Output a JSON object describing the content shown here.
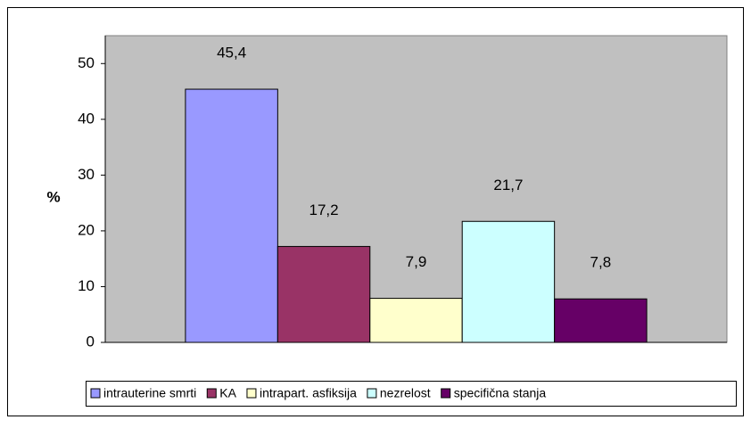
{
  "chart_data": {
    "type": "bar",
    "ylabel": "%",
    "categories": [
      null
    ],
    "series": [
      {
        "name": "intrauterine smrti",
        "color": "#9999ff",
        "values": [
          45.4
        ],
        "value_labels": [
          "45,4"
        ]
      },
      {
        "name": "KA",
        "color": "#993366",
        "values": [
          17.2
        ],
        "value_labels": [
          "17,2"
        ]
      },
      {
        "name": "intrapart. asfiksija",
        "color": "#ffffcc",
        "values": [
          7.9
        ],
        "value_labels": [
          "7,9"
        ]
      },
      {
        "name": "nezrelost",
        "color": "#ccffff",
        "values": [
          21.7
        ],
        "value_labels": [
          "21,7"
        ]
      },
      {
        "name": "specifična stanja",
        "color": "#660066",
        "values": [
          7.8
        ],
        "value_labels": [
          "7,8"
        ]
      }
    ],
    "ylim": [
      0,
      55
    ],
    "yticks": [
      0,
      10,
      20,
      30,
      40,
      50
    ],
    "legend": "bottom"
  }
}
